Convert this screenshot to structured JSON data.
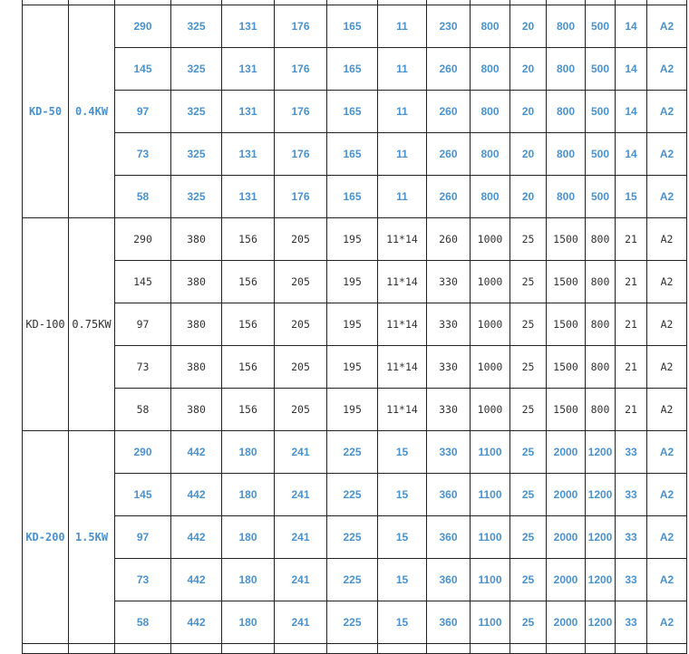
{
  "table": {
    "groups": [
      {
        "model": "KD-50",
        "power": "0.4KW",
        "color": "#4b92cc",
        "bold": true,
        "rows": [
          [
            "290",
            "325",
            "131",
            "176",
            "165",
            "11",
            "230",
            "800",
            "20",
            "800",
            "500",
            "14",
            "A2"
          ],
          [
            "145",
            "325",
            "131",
            "176",
            "165",
            "11",
            "260",
            "800",
            "20",
            "800",
            "500",
            "14",
            "A2"
          ],
          [
            "97",
            "325",
            "131",
            "176",
            "165",
            "11",
            "260",
            "800",
            "20",
            "800",
            "500",
            "14",
            "A2"
          ],
          [
            "73",
            "325",
            "131",
            "176",
            "165",
            "11",
            "260",
            "800",
            "20",
            "800",
            "500",
            "14",
            "A2"
          ],
          [
            "58",
            "325",
            "131",
            "176",
            "165",
            "11",
            "260",
            "800",
            "20",
            "800",
            "500",
            "15",
            "A2"
          ]
        ]
      },
      {
        "model": "KD-100",
        "power": "0.75KW",
        "color": "#333333",
        "bold": false,
        "rows": [
          [
            "290",
            "380",
            "156",
            "205",
            "195",
            "11*14",
            "260",
            "1000",
            "25",
            "1500",
            "800",
            "21",
            "A2"
          ],
          [
            "145",
            "380",
            "156",
            "205",
            "195",
            "11*14",
            "330",
            "1000",
            "25",
            "1500",
            "800",
            "21",
            "A2"
          ],
          [
            "97",
            "380",
            "156",
            "205",
            "195",
            "11*14",
            "330",
            "1000",
            "25",
            "1500",
            "800",
            "21",
            "A2"
          ],
          [
            "73",
            "380",
            "156",
            "205",
            "195",
            "11*14",
            "330",
            "1000",
            "25",
            "1500",
            "800",
            "21",
            "A2"
          ],
          [
            "58",
            "380",
            "156",
            "205",
            "195",
            "11*14",
            "330",
            "1000",
            "25",
            "1500",
            "800",
            "21",
            "A2"
          ]
        ]
      },
      {
        "model": "KD-200",
        "power": "1.5KW",
        "color": "#4b92cc",
        "bold": true,
        "rows": [
          [
            "290",
            "442",
            "180",
            "241",
            "225",
            "15",
            "330",
            "1100",
            "25",
            "2000",
            "1200",
            "33",
            "A2"
          ],
          [
            "145",
            "442",
            "180",
            "241",
            "225",
            "15",
            "360",
            "1100",
            "25",
            "2000",
            "1200",
            "33",
            "A2"
          ],
          [
            "97",
            "442",
            "180",
            "241",
            "225",
            "15",
            "360",
            "1100",
            "25",
            "2000",
            "1200",
            "33",
            "A2"
          ],
          [
            "73",
            "442",
            "180",
            "241",
            "225",
            "15",
            "360",
            "1100",
            "25",
            "2000",
            "1200",
            "33",
            "A2"
          ],
          [
            "58",
            "442",
            "180",
            "241",
            "225",
            "15",
            "360",
            "1100",
            "25",
            "2000",
            "1200",
            "33",
            "A2"
          ]
        ]
      }
    ]
  }
}
